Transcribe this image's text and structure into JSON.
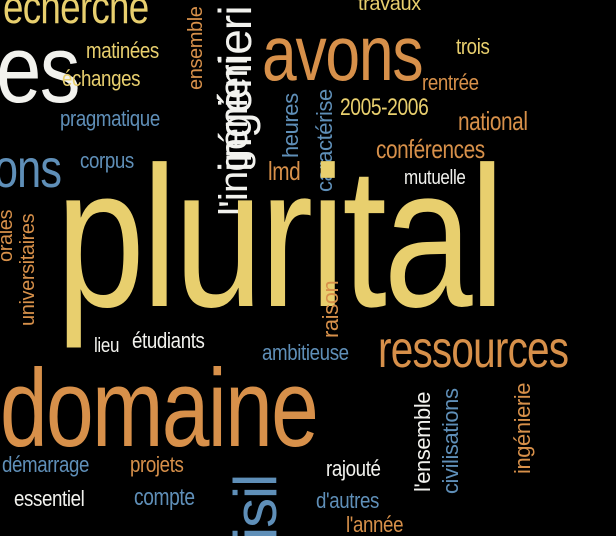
{
  "colors": {
    "background": "#000000",
    "yellow": "#e8cf6e",
    "orange": "#d7904a",
    "blue": "#5f8fb8",
    "white": "#f2f2ee"
  },
  "words": {
    "recherche": "echerche",
    "travaux": "travaux",
    "es": "es",
    "matinees": "matinées",
    "echanges": "échanges",
    "ensemble": "ensemble",
    "ingenierie_top": "ingénieri",
    "avons": "avons",
    "trois": "trois",
    "rentree": "rentrée",
    "pragmatique": "pragmatique",
    "heures": "heures",
    "caracterise": "caractérise",
    "year": "2005-2006",
    "national": "national",
    "ons": "ons",
    "corpus": "corpus",
    "conferences": "conférences",
    "lmd": "lmd",
    "mutuelle": "mutuelle",
    "lingenierie": "l'ingénieri",
    "orales": "orales",
    "universitaires": "universitaires",
    "plurital": "plurital",
    "raison": "raison",
    "lieu": "lieu",
    "etudiants": "étudiants",
    "ambitieuse": "ambitieuse",
    "ressources": "ressources",
    "domaine": "domaine",
    "lensemble": "l'ensemble",
    "civilisations": "civilisations",
    "ingenierie_bottom": "ingénierie",
    "demarrage": "démarrage",
    "projets": "projets",
    "rajoute": "rajouté",
    "essentiel": "essentiel",
    "compte": "compte",
    "dautres": "d'autres",
    "lannee": "l'année",
    "isi": "isil"
  }
}
